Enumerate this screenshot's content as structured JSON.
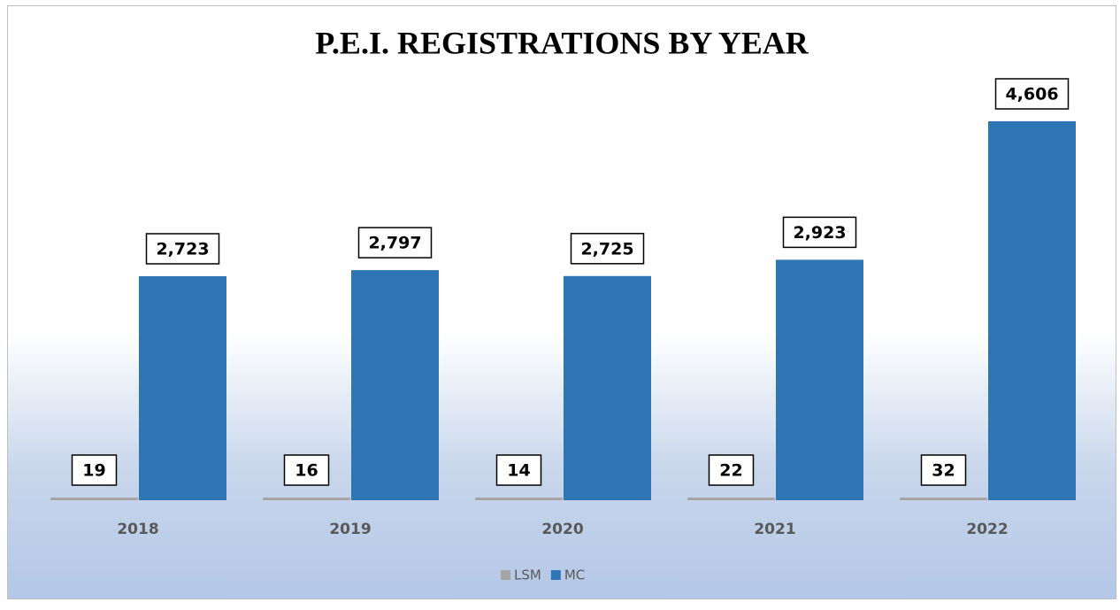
{
  "chart_data": {
    "type": "bar",
    "title": "P.E.I. REGISTRATIONS BY YEAR",
    "categories": [
      "2018",
      "2019",
      "2020",
      "2021",
      "2022"
    ],
    "series": [
      {
        "name": "LSM",
        "color": "#a5a5a5",
        "values": [
          19,
          16,
          14,
          22,
          32
        ],
        "value_labels": [
          "19",
          "16",
          "14",
          "22",
          "32"
        ]
      },
      {
        "name": "MC",
        "color": "#2e75b6",
        "values": [
          2723,
          2797,
          2725,
          2923,
          4606
        ],
        "value_labels": [
          "2,723",
          "2,797",
          "2,725",
          "2,923",
          "4,606"
        ]
      }
    ],
    "legend": "bottom"
  }
}
